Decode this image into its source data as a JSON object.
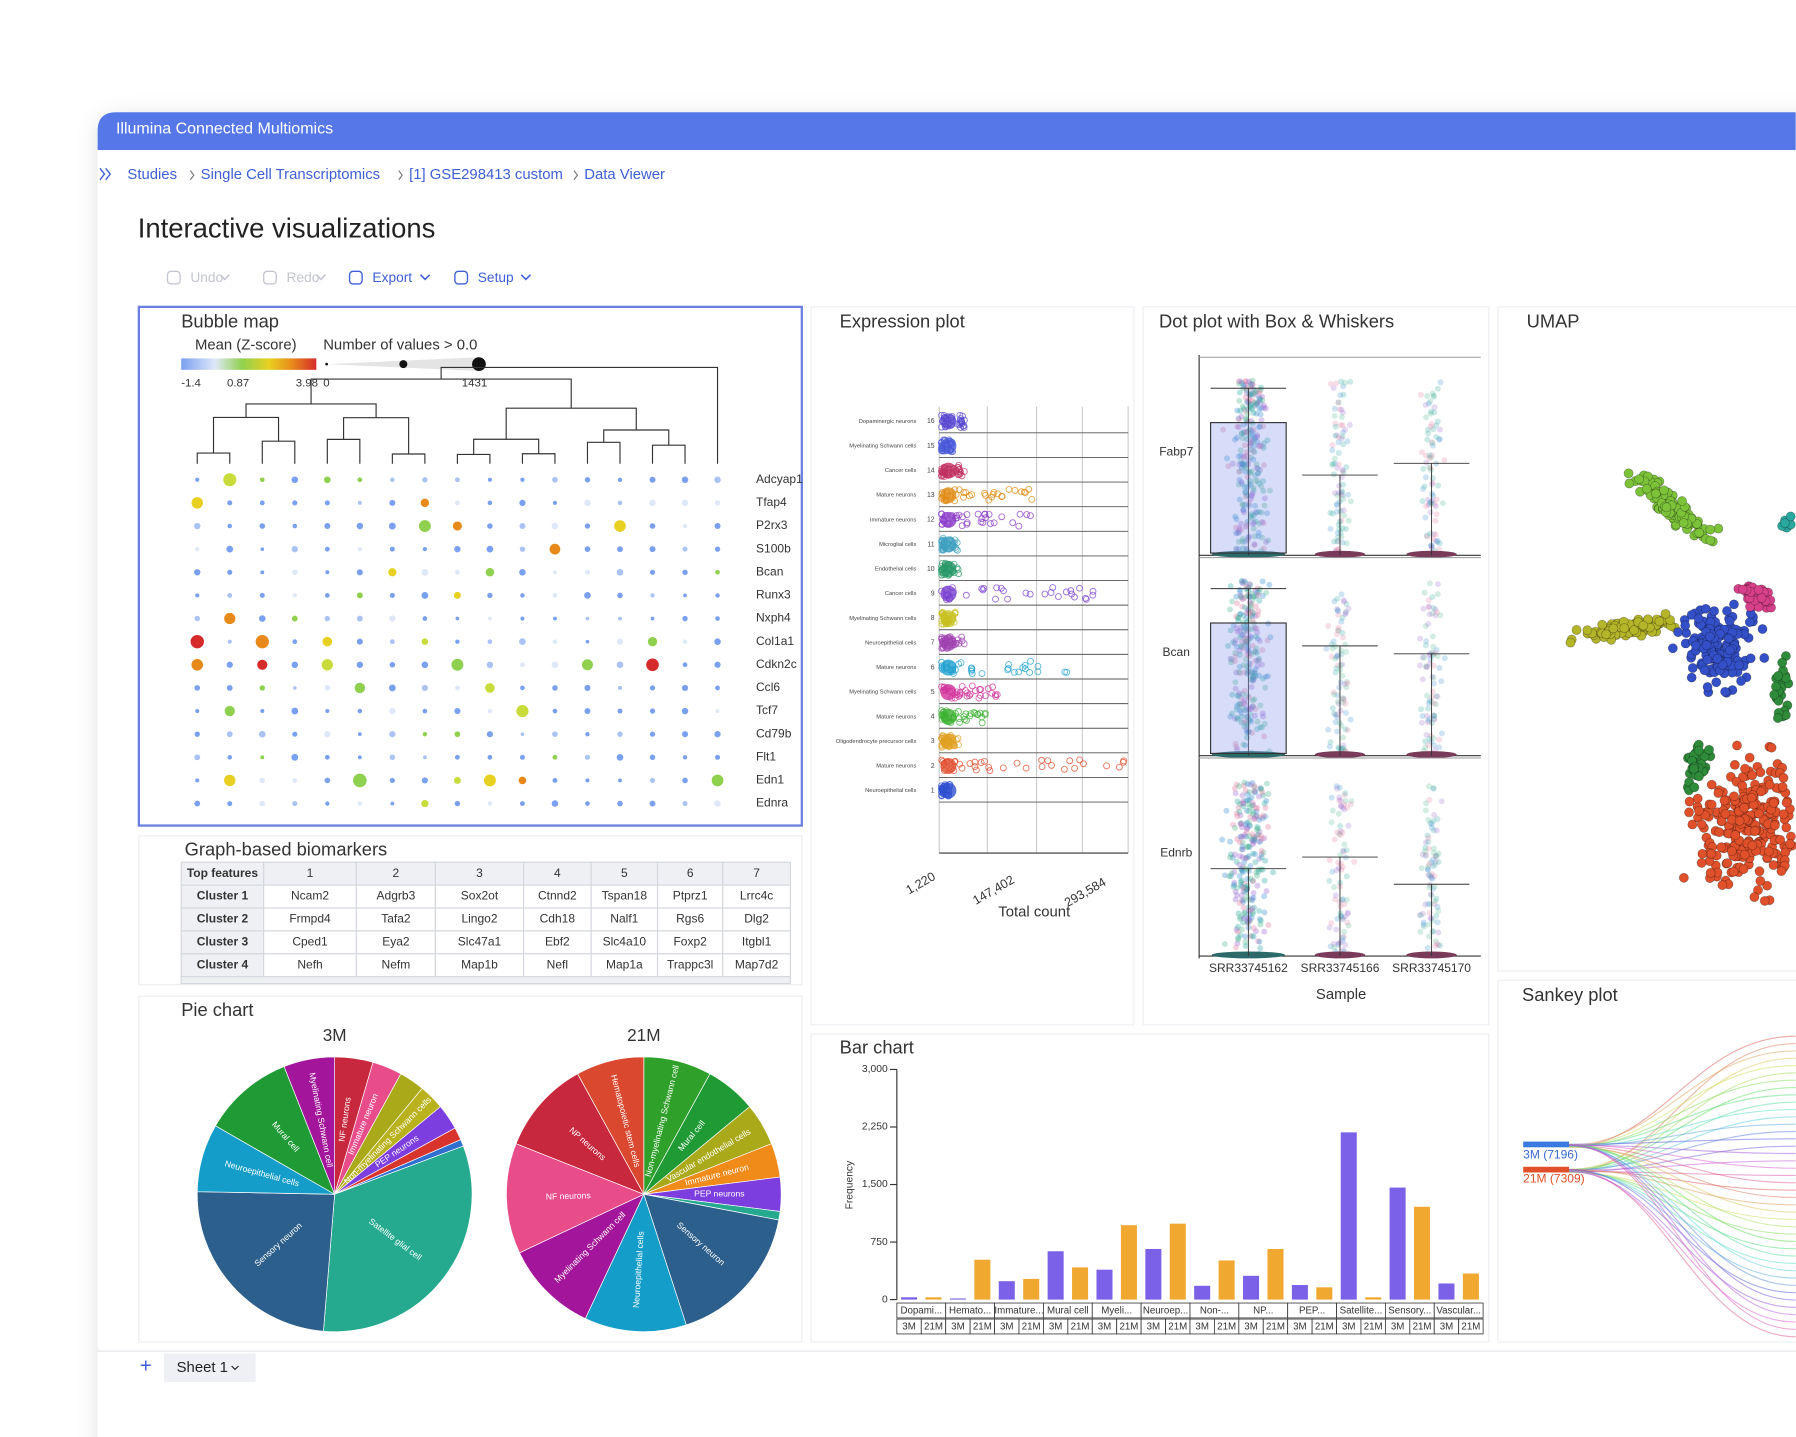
{
  "app": {
    "title": "Illumina Connected Multiomics"
  },
  "breadcrumbs": [
    "Studies",
    "Single Cell Transcriptomics",
    "[1] GSE298413 custom",
    "Data Viewer"
  ],
  "page_title": "Interactive visualizations",
  "toolbar": [
    "Undo",
    "Redo",
    "Export",
    "Setup"
  ],
  "bubble_map": {
    "title": "Bubble map",
    "color_legend": {
      "title": "Mean (Z-score)",
      "labels": [
        "-1.4",
        "0.87",
        "3.98"
      ]
    },
    "size_legend": {
      "title": "Number of values > 0.0",
      "labels": [
        "0",
        "1431"
      ]
    },
    "genes": [
      "Adcyap1",
      "Tfap4",
      "P2rx3",
      "S100b",
      "Bcan",
      "Runx3",
      "Nxph4",
      "Col1a1",
      "Cdkn2c",
      "Ccl6",
      "Tcf7",
      "Cd79b",
      "Flt1",
      "Edn1",
      "Ednra"
    ]
  },
  "biomarkers": {
    "title": "Graph-based biomarkers",
    "header": [
      "Top features",
      "1",
      "2",
      "3",
      "4",
      "5",
      "6",
      "7"
    ],
    "rows": [
      [
        "Cluster 1",
        "Ncam2",
        "Adgrb3",
        "Sox2ot",
        "Ctnnd2",
        "Tspan18",
        "Ptprz1",
        "Lrrc4c"
      ],
      [
        "Cluster 2",
        "Frmpd4",
        "Tafa2",
        "Lingo2",
        "Cdh18",
        "Nalf1",
        "Rgs6",
        "Dlg2"
      ],
      [
        "Cluster 3",
        "Cped1",
        "Eya2",
        "Slc47a1",
        "Ebf2",
        "Slc4a10",
        "Foxp2",
        "Itgbl1"
      ],
      [
        "Cluster 4",
        "Nefh",
        "Nefm",
        "Map1b",
        "Nefl",
        "Map1a",
        "Trappc3l",
        "Map7d2"
      ]
    ]
  },
  "expression_plot": {
    "title": "Expression plot",
    "row_ids": [
      "16",
      "15",
      "14",
      "13",
      "12",
      "11",
      "10",
      "9",
      "8",
      "7",
      "6",
      "5",
      "4",
      "3",
      "2",
      "1"
    ],
    "row_labels": [
      "Dopaminergic neurons",
      "Myelinating Schwann cells",
      "Cancer cells",
      "Mature neurons",
      "Immature neurons",
      "Microglial cells",
      "Endothelial cells",
      "Cancer cells",
      "Myelinating Schwann cells",
      "Neuroepithelial cells",
      "Mature neurons",
      "Myelinating Schwann cells",
      "Mature neurons",
      "Oligodendrocyte precursor cells",
      "Mature neurons",
      "Neuroepithelial cells"
    ],
    "xticks": [
      "1,220",
      "147,402",
      "293,584"
    ],
    "x_label": "Total count"
  },
  "dot_plot": {
    "title": "Dot plot with Box & Whiskers",
    "genes": [
      "Fabp7",
      "Bcan",
      "Ednrb"
    ],
    "samples": [
      "SRR33745162",
      "SRR33745166",
      "SRR33745170"
    ],
    "x_label": "Sample"
  },
  "umap": {
    "title": "UMAP"
  },
  "pie_panel": {
    "title": "Pie chart"
  },
  "sankey": {
    "title": "Sankey plot",
    "nodes": [
      "3M (7196)",
      "21M (7309)"
    ]
  },
  "sheet_tab": "Sheet 1",
  "chart_data": [
    {
      "type": "pie",
      "title": "3M",
      "categories": [
        "NF neurons",
        "Immature neuron",
        null,
        "Non-myelinating Schwann cells",
        "PEP neurons",
        null,
        null,
        "Satellite glial cell",
        "Sensory neuron",
        "Neuroepithelial cells",
        "Mural cell",
        "Myelinating Schwann cell"
      ],
      "values": [
        4.5,
        3.5,
        3,
        3,
        3,
        1.5,
        0.8,
        32,
        24,
        8,
        10.7,
        6
      ],
      "colors": [
        "#c8283e",
        "#e84d8a",
        "#a9a91a",
        "#b9b21c",
        "#7d3ee0",
        "#d9342b",
        "#2f6fd0",
        "#25a98f",
        "#2d5f8c",
        "#159dca",
        "#1f9a34",
        "#a3159a"
      ]
    },
    {
      "type": "pie",
      "title": "21M",
      "categories": [
        "Non-myelinating Schwann cell",
        "Mural cell",
        "Vascular endothelial cells",
        "Immature neuron",
        "PEP neurons",
        null,
        "Sensory neuron",
        "Neuroepithelial cells",
        "Myelinating Schwann cell",
        "NF neurons",
        "NP neurons",
        "Hematopoietic stem cells"
      ],
      "values": [
        8,
        6,
        5,
        4,
        4,
        1,
        17,
        12,
        11,
        13,
        11,
        8
      ],
      "colors": [
        "#2fa02a",
        "#1f9a34",
        "#a9a91a",
        "#f08a18",
        "#7d3ee0",
        "#25a98f",
        "#2d5f8c",
        "#159dca",
        "#a3159a",
        "#e84d8a",
        "#c8283e",
        "#d9482f"
      ]
    },
    {
      "type": "bar",
      "title": "Bar chart",
      "categories": [
        "Dopami...",
        "Hemato...",
        "Immature...",
        "Mural cell",
        "Myeli...",
        "Neuroep...",
        "Non-...",
        "NP...",
        "PEP...",
        "Satellite...",
        "Sensory...",
        "Vascular..."
      ],
      "series": [
        {
          "name": "3M",
          "color": "#7b61e8",
          "values": [
            30,
            15,
            240,
            630,
            390,
            660,
            180,
            310,
            190,
            2180,
            1460,
            210
          ]
        },
        {
          "name": "21M",
          "color": "#f0a830",
          "values": [
            30,
            520,
            270,
            420,
            970,
            990,
            510,
            660,
            160,
            30,
            1210,
            340
          ]
        }
      ],
      "y_label": "Frequency",
      "ylim": [
        0,
        3000
      ],
      "yticks": [
        0,
        750,
        {
          "value": 1500,
          "label": "1,500"
        },
        {
          "value": 2250,
          "label": "2,250"
        },
        {
          "value": 3000,
          "label": "3,000"
        }
      ]
    }
  ]
}
